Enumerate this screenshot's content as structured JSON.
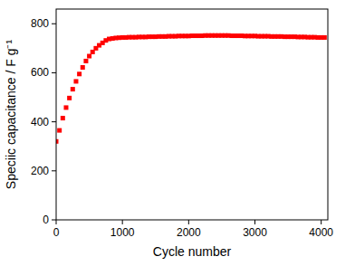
{
  "chart_data": {
    "type": "scatter",
    "x_label": "Cycle number",
    "y_label": "Speciic capacitance / F g⁻¹",
    "color": "#ff0000",
    "marker": "square",
    "xlim": [
      0,
      4100
    ],
    "ylim": [
      0,
      860
    ],
    "xticks": [
      0,
      1000,
      2000,
      3000,
      4000
    ],
    "yticks": [
      0,
      200,
      400,
      600,
      800
    ],
    "x": [
      0,
      50,
      100,
      150,
      200,
      250,
      300,
      350,
      400,
      450,
      500,
      550,
      600,
      650,
      700,
      750,
      800,
      850,
      900,
      950,
      1000,
      1050,
      1100,
      1150,
      1200,
      1250,
      1300,
      1350,
      1400,
      1450,
      1500,
      1550,
      1600,
      1650,
      1700,
      1750,
      1800,
      1850,
      1900,
      1950,
      2000,
      2050,
      2100,
      2150,
      2200,
      2250,
      2300,
      2350,
      2400,
      2450,
      2500,
      2550,
      2600,
      2650,
      2700,
      2750,
      2800,
      2850,
      2900,
      2950,
      3000,
      3050,
      3100,
      3150,
      3200,
      3250,
      3300,
      3350,
      3400,
      3450,
      3500,
      3550,
      3600,
      3650,
      3700,
      3750,
      3800,
      3850,
      3900,
      3950,
      4000,
      4050
    ],
    "values": [
      320,
      365,
      415,
      458,
      497,
      533,
      565,
      595,
      622,
      648,
      668,
      685,
      700,
      712,
      722,
      732,
      738,
      740,
      742,
      743,
      744,
      744,
      745,
      745,
      745,
      746,
      746,
      746,
      747,
      747,
      747,
      748,
      748,
      748,
      749,
      749,
      749,
      750,
      750,
      750,
      750,
      751,
      751,
      751,
      751,
      752,
      752,
      752,
      752,
      752,
      752,
      752,
      752,
      751,
      751,
      751,
      751,
      750,
      750,
      750,
      750,
      749,
      749,
      749,
      749,
      748,
      748,
      748,
      748,
      747,
      747,
      747,
      747,
      746,
      746,
      746,
      745,
      745,
      745,
      744,
      744,
      744
    ]
  }
}
